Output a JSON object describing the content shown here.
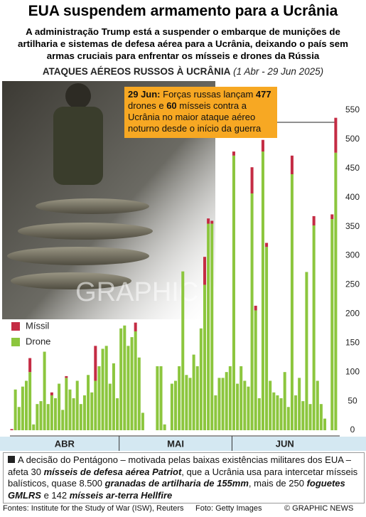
{
  "title": "EUA suspendem armamento para a Ucrânia",
  "subtitle": "A administração Trump está a suspender o embarque de munições de artilharia e sistemas de defesa aérea para a Ucrânia, deixando o país sem armas cruciais para enfrentar os mísseis e drones da Rússia",
  "chart_data": {
    "type": "stacked-bar",
    "title": "ATAQUES AÉREOS RUSSOS À UCRÂNIA",
    "subtitle": "(1 Abr - 29 Jun 2025)",
    "categories": [
      null,
      null,
      null,
      null,
      null,
      null,
      null,
      null,
      null,
      null,
      null,
      null,
      null,
      null,
      null,
      null,
      null,
      null,
      null,
      null,
      null,
      null,
      null,
      null,
      null,
      null,
      null,
      null,
      null,
      null,
      null,
      null,
      null,
      null,
      null,
      null,
      null,
      null,
      null,
      null,
      null,
      null,
      null,
      null,
      null,
      null,
      null,
      null,
      null,
      null,
      null,
      null,
      null,
      null,
      null,
      null,
      null,
      null,
      null,
      null,
      null,
      null,
      null,
      null,
      null,
      null,
      null,
      null,
      null,
      null,
      null,
      null,
      null,
      null,
      null,
      null,
      null,
      null,
      null,
      null,
      null,
      null,
      null,
      null,
      null,
      null,
      null,
      null,
      null,
      null
    ],
    "month_labels": [
      "ABR",
      "MAI",
      "JUN"
    ],
    "series": [
      {
        "name": "Drone",
        "color": "#8cc63e",
        "values": [
          0,
          70,
          40,
          75,
          85,
          100,
          10,
          45,
          50,
          135,
          45,
          60,
          55,
          80,
          35,
          90,
          70,
          55,
          85,
          45,
          60,
          95,
          65,
          85,
          110,
          140,
          145,
          80,
          115,
          55,
          175,
          180,
          145,
          160,
          170,
          125,
          30,
          0,
          0,
          0,
          110,
          110,
          10,
          0,
          80,
          85,
          110,
          273,
          95,
          90,
          130,
          110,
          175,
          250,
          355,
          355,
          60,
          90,
          90,
          100,
          110,
          472,
          80,
          110,
          85,
          75,
          407,
          206,
          55,
          479,
          315,
          85,
          65,
          60,
          55,
          100,
          40,
          440,
          60,
          90,
          50,
          272,
          45,
          352,
          85,
          45,
          20,
          0,
          363,
          477
        ]
      },
      {
        "name": "Míssil",
        "color": "#c42c44",
        "values": [
          2,
          0,
          0,
          0,
          0,
          24,
          0,
          0,
          0,
          0,
          0,
          5,
          0,
          0,
          0,
          3,
          0,
          0,
          0,
          0,
          0,
          0,
          0,
          60,
          0,
          0,
          0,
          0,
          0,
          0,
          0,
          0,
          0,
          0,
          15,
          0,
          0,
          0,
          0,
          0,
          0,
          0,
          0,
          0,
          0,
          0,
          0,
          0,
          0,
          0,
          0,
          0,
          0,
          48,
          9,
          5,
          0,
          0,
          0,
          0,
          0,
          7,
          0,
          0,
          0,
          0,
          45,
          8,
          0,
          20,
          7,
          0,
          0,
          0,
          0,
          0,
          0,
          32,
          0,
          0,
          0,
          0,
          0,
          16,
          0,
          0,
          0,
          0,
          8,
          60
        ]
      }
    ],
    "ylim": [
      0,
      550
    ],
    "yticks": [
      0,
      50,
      100,
      150,
      200,
      250,
      300,
      350,
      400,
      450,
      500,
      550
    ],
    "grid": false,
    "legend": "left",
    "annotation": [
      {
        "text": "29 Jun:",
        "bold": true
      },
      " Forças russas lançam ",
      {
        "text": "477",
        "bold": true
      },
      " drones e ",
      {
        "text": "60",
        "bold": true
      },
      " mísseis contra a Ucrânia no maior ataque aéreo noturno desde o início da guerra"
    ]
  },
  "watermark": "GRAPHIC NEWS",
  "summary": [
    "A decisão do Pentágono – motivada pelas baixas existências militares dos EUA – afeta 30 ",
    {
      "text": "mísseis de defesa aérea Patriot",
      "bold": true
    },
    ", que a Ucrânia usa para intercetar mísseis balísticos, quase 8.500 ",
    {
      "text": "granadas de artilharia de 155mm",
      "bold": true
    },
    ", mais de 250 ",
    {
      "text": "foguetes GMLRS",
      "bold": true
    },
    " e 142 ",
    {
      "text": "mísseis ar-terra Hellfire",
      "bold": true
    }
  ],
  "sources": "Fontes: Institute for the Study of War (ISW), Reuters",
  "photo_credit": "Foto: Getty Images",
  "copyright": "© GRAPHIC NEWS"
}
